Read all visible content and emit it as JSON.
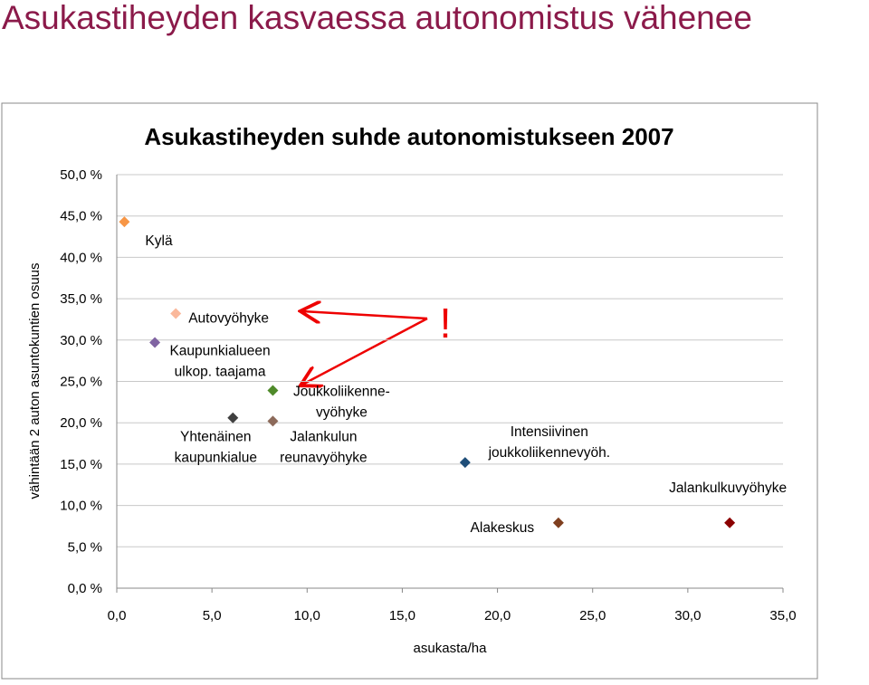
{
  "slide_title": "Asukastiheyden kasvaessa autonomistus vähenee",
  "chart_data": {
    "type": "scatter",
    "title": "Asukastiheyden suhde autonomistukseen 2007",
    "x_label": "asukasta/ha",
    "y_label": "vähintään 2 auton asuntokuntien osuus",
    "annotation": "!",
    "xlim": [
      0,
      35
    ],
    "ylim": [
      0,
      50
    ],
    "xticks": [
      {
        "value": 0,
        "label": "0,0"
      },
      {
        "value": 5,
        "label": "5,0"
      },
      {
        "value": 10,
        "label": "10,0"
      },
      {
        "value": 15,
        "label": "15,0"
      },
      {
        "value": 20,
        "label": "20,0"
      },
      {
        "value": 25,
        "label": "25,0"
      },
      {
        "value": 30,
        "label": "30,0"
      },
      {
        "value": 35,
        "label": "35,0"
      }
    ],
    "yticks": [
      {
        "value": 0,
        "label": "0,0 %"
      },
      {
        "value": 5,
        "label": "5,0 %"
      },
      {
        "value": 10,
        "label": "10,0 %"
      },
      {
        "value": 15,
        "label": "15,0 %"
      },
      {
        "value": 20,
        "label": "20,0 %"
      },
      {
        "value": 25,
        "label": "25,0 %"
      },
      {
        "value": 30,
        "label": "30,0 %"
      },
      {
        "value": 35,
        "label": "35,0 %"
      },
      {
        "value": 40,
        "label": "40,0 %"
      },
      {
        "value": 45,
        "label": "45,0 %"
      },
      {
        "value": 50,
        "label": "50,0 %"
      }
    ],
    "grid": true,
    "labels": [
      [
        "Kylä"
      ],
      [
        "Autovyöhyke"
      ],
      [
        "Kaupunkialueen",
        "ulkop. taajama"
      ],
      [
        "Yhtenäinen",
        "kaupunkialue"
      ],
      [
        "Joukkoliikenne-",
        "vyöhyke"
      ],
      [
        "Jalankulun",
        "reunavyöhyke"
      ],
      [
        "Intensiivinen",
        "joukkoliikennevyöh."
      ],
      [
        "Alakeskus"
      ],
      [
        "Jalankulkuvyöhyke"
      ]
    ],
    "x": [
      0.4,
      3.1,
      2.0,
      6.1,
      8.2,
      8.2,
      18.3,
      23.2,
      32.2
    ],
    "y": [
      44.3,
      33.2,
      29.7,
      20.6,
      23.9,
      20.2,
      15.2,
      7.9,
      7.9
    ],
    "colors": [
      "#f79646",
      "#fab89b",
      "#8064a2",
      "#404040",
      "#4f8a2a",
      "#8c6a5a",
      "#1f4e79",
      "#7f3f1f",
      "#8b0000"
    ]
  }
}
